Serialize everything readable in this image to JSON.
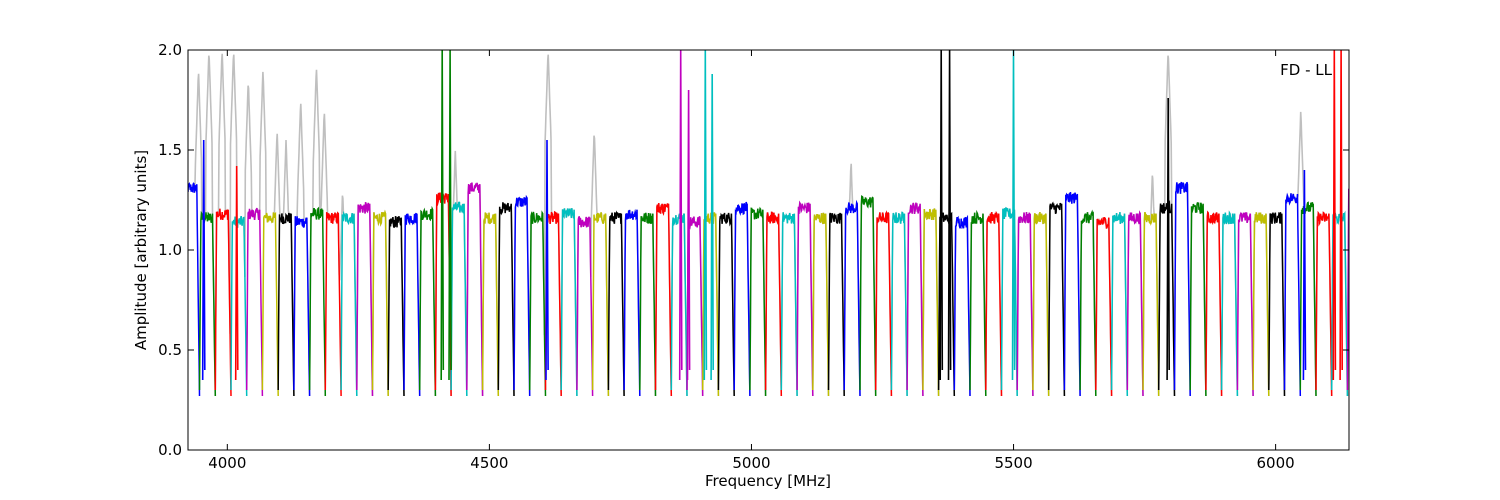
{
  "chart_data": {
    "type": "line",
    "title": "",
    "annotation": "FD - LL",
    "xlabel": "Frequency [MHz]",
    "ylabel": "Amplitude [arbitrary units]",
    "xlim": [
      3925,
      6140
    ],
    "ylim": [
      0.0,
      2.0
    ],
    "xticks": [
      4000,
      4500,
      5000,
      5500,
      6000
    ],
    "yticks": [
      0.0,
      0.5,
      1.0,
      1.5,
      2.0
    ],
    "xtick_labels": [
      "4000",
      "4500",
      "5000",
      "5500",
      "6000"
    ],
    "ytick_labels": [
      "0.0",
      "0.5",
      "1.0",
      "1.5",
      "2.0"
    ],
    "grid": false,
    "legend": "none",
    "background_series_color": "#bfbfbf",
    "band_width_mhz": 30,
    "band_colors": [
      "#0000ff",
      "#008000",
      "#ff0000",
      "#00bfbf",
      "#bf00bf",
      "#bfbf00",
      "#000000"
    ],
    "band_plateau_levels": [
      1.35,
      1.2,
      1.22,
      1.18,
      1.22,
      1.2,
      1.2,
      1.18,
      1.22,
      1.2,
      1.2,
      1.25,
      1.2,
      1.18,
      1.2,
      1.22,
      1.3,
      1.25,
      1.35,
      1.2,
      1.25,
      1.28,
      1.2,
      1.2,
      1.22,
      1.18,
      1.2,
      1.2,
      1.22,
      1.2,
      1.25,
      1.2,
      1.18,
      1.2,
      1.2,
      1.25,
      1.22,
      1.2,
      1.2,
      1.25,
      1.2,
      1.2,
      1.25,
      1.28,
      1.2,
      1.2,
      1.25,
      1.22,
      1.2,
      1.18,
      1.2,
      1.2,
      1.22,
      1.2,
      1.2,
      1.25,
      1.3,
      1.2,
      1.18,
      1.2,
      1.2,
      1.2,
      1.25,
      1.35,
      1.25,
      1.2,
      1.2,
      1.2,
      1.2,
      1.2,
      1.3,
      1.25,
      1.2,
      1.2
    ],
    "spikes": [
      {
        "x": 3955,
        "y": 1.55,
        "color_index": 0
      },
      {
        "x": 4018,
        "y": 1.42,
        "color_index": 2
      },
      {
        "x": 4410,
        "y": 2.0,
        "color_index": 1
      },
      {
        "x": 4425,
        "y": 2.0,
        "color_index": 1
      },
      {
        "x": 4610,
        "y": 1.55,
        "color_index": 0
      },
      {
        "x": 4865,
        "y": 2.0,
        "color_index": 4
      },
      {
        "x": 4880,
        "y": 1.8,
        "color_index": 4
      },
      {
        "x": 4912,
        "y": 2.0,
        "color_index": 3
      },
      {
        "x": 4925,
        "y": 1.88,
        "color_index": 3
      },
      {
        "x": 5362,
        "y": 2.0,
        "color_index": 6
      },
      {
        "x": 5378,
        "y": 2.0,
        "color_index": 6
      },
      {
        "x": 5500,
        "y": 2.0,
        "color_index": 3
      },
      {
        "x": 5795,
        "y": 1.76,
        "color_index": 6
      },
      {
        "x": 6055,
        "y": 1.4,
        "color_index": 0
      },
      {
        "x": 6112,
        "y": 2.0,
        "color_index": 2
      },
      {
        "x": 6125,
        "y": 2.0,
        "color_index": 2
      }
    ],
    "background_peaks": [
      {
        "x": 3945,
        "y": 1.9
      },
      {
        "x": 3965,
        "y": 2.0
      },
      {
        "x": 3990,
        "y": 2.0
      },
      {
        "x": 4012,
        "y": 2.0
      },
      {
        "x": 4040,
        "y": 1.85
      },
      {
        "x": 4068,
        "y": 1.9
      },
      {
        "x": 4095,
        "y": 1.6
      },
      {
        "x": 4112,
        "y": 1.55
      },
      {
        "x": 4140,
        "y": 1.75
      },
      {
        "x": 4170,
        "y": 1.92
      },
      {
        "x": 4185,
        "y": 1.7
      },
      {
        "x": 4220,
        "y": 1.3
      },
      {
        "x": 4435,
        "y": 1.5
      },
      {
        "x": 4612,
        "y": 2.0
      },
      {
        "x": 4700,
        "y": 1.6
      },
      {
        "x": 5190,
        "y": 1.45
      },
      {
        "x": 5795,
        "y": 2.0
      },
      {
        "x": 5765,
        "y": 1.4
      },
      {
        "x": 6048,
        "y": 1.7
      }
    ]
  }
}
